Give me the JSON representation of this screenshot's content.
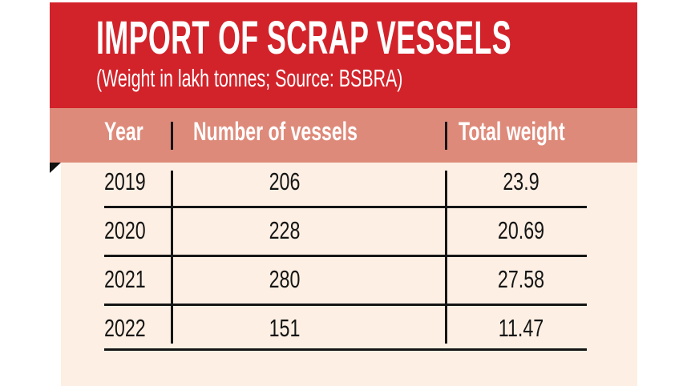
{
  "title": "IMPORT OF SCRAP VESSELS",
  "subtitle": "(Weight in lakh tonnes; Source: BSBRA)",
  "colors": {
    "header": "#d2232a",
    "column_band": "#de8a7a",
    "body": "#fdefe3",
    "text": "#151515"
  },
  "chart_data": {
    "type": "table",
    "title": "IMPORT OF SCRAP VESSELS",
    "subtitle": "(Weight in lakh tonnes; Source: BSBRA)",
    "columns": [
      "Year",
      "Number of vessels",
      "Total weight"
    ],
    "rows": [
      [
        "2019",
        "206",
        "23.9"
      ],
      [
        "2020",
        "228",
        "20.69"
      ],
      [
        "2021",
        "280",
        "27.58"
      ],
      [
        "2022",
        "151",
        "11.47"
      ]
    ]
  }
}
